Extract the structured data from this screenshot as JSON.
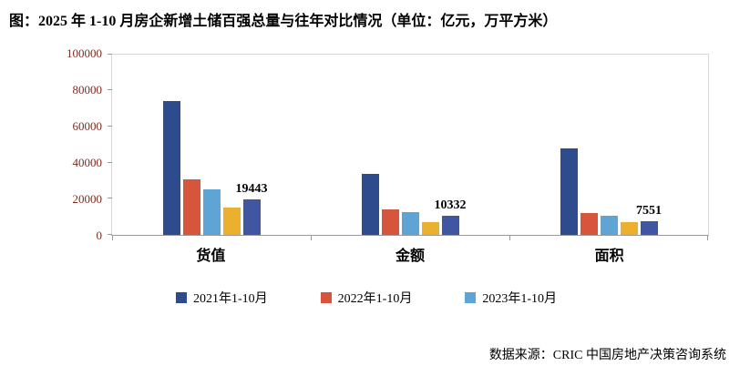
{
  "title": "图：2025 年 1-10 月房企新增土储百强总量与往年对比情况（单位：亿元，万平方米）",
  "source": "数据来源：CRIC 中国房地产决策咨询系统",
  "chart_data": {
    "type": "bar",
    "categories": [
      "货值",
      "金额",
      "面积"
    ],
    "series": [
      {
        "name": "2021年1-10月",
        "color": "#2e4b8e",
        "values": [
          74000,
          33500,
          48000
        ],
        "in_legend": true,
        "labeled": false
      },
      {
        "name": "2022年1-10月",
        "color": "#d6553c",
        "values": [
          30500,
          14200,
          11800
        ],
        "in_legend": true,
        "labeled": false
      },
      {
        "name": "2023年1-10月",
        "color": "#5ea4d4",
        "values": [
          25300,
          12300,
          10500
        ],
        "in_legend": true,
        "labeled": false
      },
      {
        "name": "",
        "color": "#ecb02f",
        "values": [
          15000,
          7000,
          7000
        ],
        "in_legend": false,
        "labeled": false
      },
      {
        "name": "",
        "color": "#4156a3",
        "values": [
          19443,
          10332,
          7551
        ],
        "in_legend": false,
        "labeled": true
      }
    ],
    "data_labels": [
      19443,
      10332,
      7551
    ],
    "ylim": [
      0,
      100000
    ],
    "yticks": [
      0,
      20000,
      40000,
      60000,
      80000,
      100000
    ],
    "grid": false,
    "legend_position": "bottom",
    "tick_label_color": "#7d2c21"
  }
}
